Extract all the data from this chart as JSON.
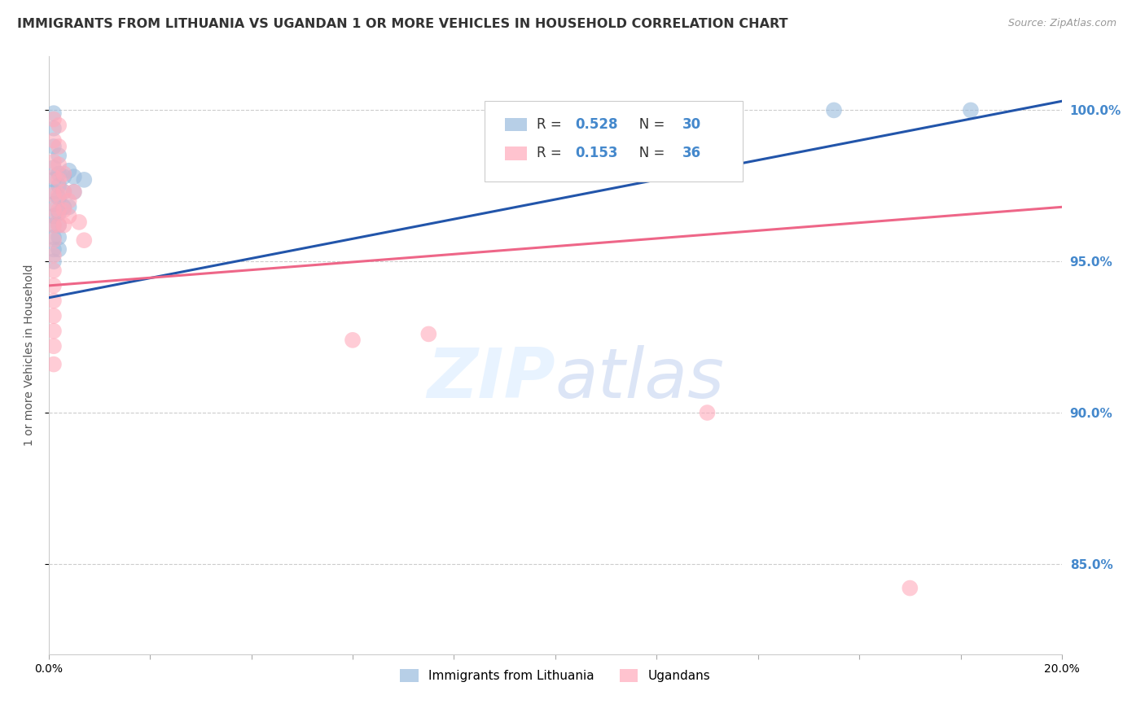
{
  "title": "IMMIGRANTS FROM LITHUANIA VS UGANDAN 1 OR MORE VEHICLES IN HOUSEHOLD CORRELATION CHART",
  "source": "Source: ZipAtlas.com",
  "ylabel": "1 or more Vehicles in Household",
  "xmin": 0.0,
  "xmax": 0.2,
  "ymin": 0.82,
  "ymax": 1.018,
  "yticks": [
    0.85,
    0.9,
    0.95,
    1.0
  ],
  "ytick_labels": [
    "85.0%",
    "90.0%",
    "95.0%",
    "100.0%"
  ],
  "xticks": [
    0.0,
    0.02,
    0.04,
    0.06,
    0.08,
    0.1,
    0.12,
    0.14,
    0.16,
    0.18,
    0.2
  ],
  "xtick_labels": [
    "0.0%",
    "",
    "",
    "",
    "",
    "",
    "",
    "",
    "",
    "",
    "20.0%"
  ],
  "legend_R_blue": "0.528",
  "legend_N_blue": "30",
  "legend_R_pink": "0.153",
  "legend_N_pink": "36",
  "blue_scatter": [
    [
      0.001,
      0.999
    ],
    [
      0.001,
      0.994
    ],
    [
      0.001,
      0.988
    ],
    [
      0.001,
      0.981
    ],
    [
      0.001,
      0.977
    ],
    [
      0.001,
      0.973
    ],
    [
      0.001,
      0.969
    ],
    [
      0.001,
      0.965
    ],
    [
      0.001,
      0.962
    ],
    [
      0.001,
      0.958
    ],
    [
      0.001,
      0.954
    ],
    [
      0.001,
      0.95
    ],
    [
      0.002,
      0.985
    ],
    [
      0.002,
      0.979
    ],
    [
      0.002,
      0.975
    ],
    [
      0.002,
      0.971
    ],
    [
      0.002,
      0.966
    ],
    [
      0.002,
      0.962
    ],
    [
      0.002,
      0.958
    ],
    [
      0.002,
      0.954
    ],
    [
      0.003,
      0.978
    ],
    [
      0.003,
      0.973
    ],
    [
      0.003,
      0.968
    ],
    [
      0.004,
      0.98
    ],
    [
      0.004,
      0.968
    ],
    [
      0.005,
      0.978
    ],
    [
      0.005,
      0.973
    ],
    [
      0.007,
      0.977
    ],
    [
      0.155,
      1.0
    ],
    [
      0.182,
      1.0
    ]
  ],
  "pink_scatter": [
    [
      0.001,
      0.997
    ],
    [
      0.001,
      0.99
    ],
    [
      0.001,
      0.983
    ],
    [
      0.001,
      0.978
    ],
    [
      0.001,
      0.972
    ],
    [
      0.001,
      0.967
    ],
    [
      0.001,
      0.962
    ],
    [
      0.001,
      0.957
    ],
    [
      0.001,
      0.952
    ],
    [
      0.001,
      0.947
    ],
    [
      0.001,
      0.942
    ],
    [
      0.001,
      0.937
    ],
    [
      0.001,
      0.932
    ],
    [
      0.001,
      0.927
    ],
    [
      0.001,
      0.922
    ],
    [
      0.001,
      0.916
    ],
    [
      0.002,
      0.995
    ],
    [
      0.002,
      0.988
    ],
    [
      0.002,
      0.982
    ],
    [
      0.002,
      0.977
    ],
    [
      0.002,
      0.972
    ],
    [
      0.002,
      0.967
    ],
    [
      0.002,
      0.962
    ],
    [
      0.003,
      0.979
    ],
    [
      0.003,
      0.973
    ],
    [
      0.003,
      0.967
    ],
    [
      0.003,
      0.962
    ],
    [
      0.004,
      0.97
    ],
    [
      0.004,
      0.965
    ],
    [
      0.005,
      0.973
    ],
    [
      0.006,
      0.963
    ],
    [
      0.007,
      0.957
    ],
    [
      0.06,
      0.924
    ],
    [
      0.075,
      0.926
    ],
    [
      0.13,
      0.9
    ],
    [
      0.17,
      0.842
    ]
  ],
  "blue_line_x": [
    0.0,
    0.2
  ],
  "blue_line_y": [
    0.938,
    1.003
  ],
  "pink_line_x": [
    0.0,
    0.2
  ],
  "pink_line_y": [
    0.942,
    0.968
  ],
  "watermark_zip": "ZIP",
  "watermark_atlas": "atlas",
  "blue_color": "#99BBDD",
  "pink_color": "#FFAABB",
  "blue_line_color": "#2255AA",
  "pink_line_color": "#EE6688",
  "title_fontsize": 11.5,
  "axis_label_fontsize": 10,
  "tick_fontsize": 10,
  "right_tick_color": "#4488CC",
  "background_color": "#FFFFFF"
}
